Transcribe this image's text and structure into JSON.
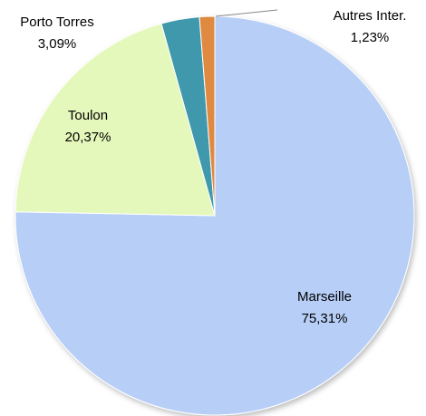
{
  "chart_data": {
    "type": "pie",
    "categories": [
      "Marseille",
      "Toulon",
      "Porto Torres",
      "Autres Inter."
    ],
    "values": [
      75.31,
      20.37,
      3.09,
      1.23
    ],
    "value_labels": [
      "75,31%",
      "20,37%",
      "3,09%",
      "1,23%"
    ],
    "colors": [
      "#b7cef7",
      "#e5f8bb",
      "#4098ad",
      "#e0893f"
    ]
  }
}
